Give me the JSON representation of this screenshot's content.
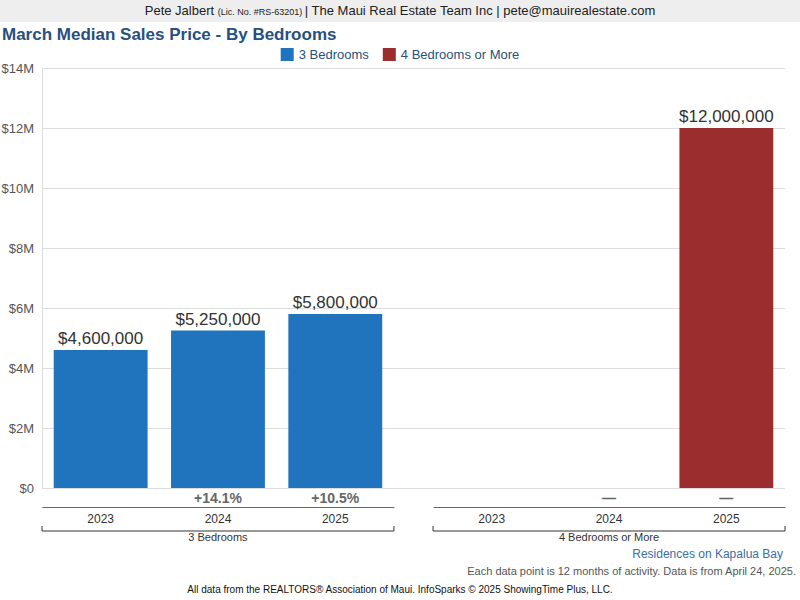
{
  "header": {
    "agent": "Pete Jalbert",
    "license": "(Lic. No. #RS-63201)",
    "company": "| The Maui Real Estate Team Inc | pete@mauirealestate.com"
  },
  "chart_data": {
    "type": "bar",
    "title": "March Median Sales Price - By Bedrooms",
    "categories": [
      "2023",
      "2024",
      "2025"
    ],
    "series": [
      {
        "name": "3 Bedrooms",
        "color": "#1f74bd",
        "values": [
          4600000,
          5250000,
          5800000
        ],
        "value_labels": [
          "$4,600,000",
          "$5,250,000",
          "$5,800,000"
        ],
        "change_labels": [
          null,
          "+14.1%",
          "+10.5%"
        ]
      },
      {
        "name": "4 Bedrooms or More",
        "color": "#9b2d2f",
        "values": [
          null,
          null,
          12000000
        ],
        "value_labels": [
          null,
          null,
          "$12,000,000"
        ],
        "change_labels": [
          null,
          "—",
          "—"
        ]
      }
    ],
    "ylim": [
      0,
      14000000
    ],
    "yticks": [
      {
        "value": 0,
        "label": "$0"
      },
      {
        "value": 2000000,
        "label": "$2M"
      },
      {
        "value": 4000000,
        "label": "$4M"
      },
      {
        "value": 6000000,
        "label": "$6M"
      },
      {
        "value": 8000000,
        "label": "$8M"
      },
      {
        "value": 10000000,
        "label": "$10M"
      },
      {
        "value": 12000000,
        "label": "$12M"
      },
      {
        "value": 14000000,
        "label": "$14M"
      }
    ],
    "grid": true,
    "data_labels": true,
    "legend": "top"
  },
  "footer": {
    "subject": "Residences on Kapalua Bay",
    "note": "Each data point is 12 months of activity. Data is from April 24, 2025.",
    "source": "All data from the REALTORS® Association of Maui. InfoSparks © 2025 ShowingTime Plus, LLC."
  }
}
